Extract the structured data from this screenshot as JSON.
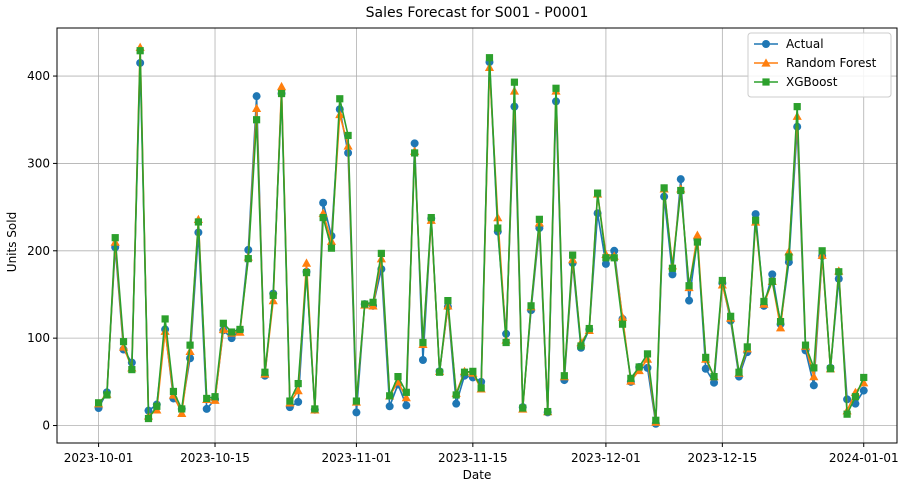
{
  "chart_data": {
    "type": "line",
    "title": "Sales Forecast for S001 - P0001",
    "xlabel": "Date",
    "ylabel": "Units Sold",
    "x_start": "2023-10-01",
    "x_end": "2024-01-01",
    "xlim": [
      "2023-09-26",
      "2024-01-05"
    ],
    "ylim": [
      -20,
      455
    ],
    "grid": true,
    "legend_position": "upper right",
    "x_tick_labels": [
      "2023-10-01",
      "2023-10-15",
      "2023-11-01",
      "2023-11-15",
      "2023-12-01",
      "2023-12-15",
      "2024-01-01"
    ],
    "x_tick_values": [
      "2023-10-01",
      "2023-10-15",
      "2023-11-01",
      "2023-11-15",
      "2023-12-01",
      "2023-12-15",
      "2024-01-01"
    ],
    "y_ticks": [
      0,
      100,
      200,
      300,
      400
    ],
    "series": [
      {
        "name": "Actual",
        "color": "#1f77b4",
        "marker": "circle",
        "values": [
          20,
          38,
          204,
          87,
          72,
          415,
          17,
          24,
          110,
          31,
          19,
          77,
          221,
          19,
          30,
          109,
          100,
          109,
          201,
          377,
          57,
          151,
          380,
          21,
          27,
          176,
          18,
          255,
          217,
          362,
          312,
          15,
          139,
          137,
          179,
          22,
          47,
          23,
          323,
          75,
          237,
          62,
          136,
          25,
          57,
          55,
          50,
          416,
          222,
          105,
          365,
          21,
          132,
          226,
          15,
          371,
          52,
          186,
          89,
          110,
          243,
          185,
          200,
          122,
          50,
          67,
          66,
          2,
          262,
          173,
          282,
          143,
          213,
          65,
          49,
          163,
          120,
          56,
          84,
          242,
          137,
          173,
          116,
          187,
          342,
          86,
          46,
          194,
          66,
          168,
          30,
          25,
          40
        ]
      },
      {
        "name": "Random Forest",
        "color": "#ff7f0e",
        "marker": "triangle",
        "values": [
          25,
          36,
          210,
          90,
          66,
          433,
          11,
          18,
          108,
          35,
          14,
          85,
          236,
          30,
          29,
          110,
          106,
          107,
          193,
          363,
          59,
          143,
          388,
          26,
          40,
          186,
          18,
          243,
          211,
          356,
          320,
          27,
          138,
          137,
          191,
          34,
          50,
          32,
          314,
          93,
          235,
          62,
          137,
          37,
          62,
          60,
          42,
          410,
          238,
          98,
          383,
          19,
          136,
          232,
          16,
          383,
          56,
          190,
          95,
          109,
          265,
          196,
          194,
          124,
          51,
          63,
          76,
          4,
          271,
          183,
          271,
          158,
          218,
          76,
          56,
          161,
          123,
          60,
          88,
          233,
          139,
          165,
          112,
          199,
          354,
          91,
          56,
          195,
          65,
          177,
          17,
          38,
          49
        ]
      },
      {
        "name": "XGBoost",
        "color": "#2ca02c",
        "marker": "square",
        "values": [
          26,
          35,
          215,
          96,
          64,
          429,
          8,
          22,
          122,
          39,
          19,
          92,
          233,
          31,
          33,
          117,
          107,
          110,
          191,
          350,
          61,
          149,
          380,
          28,
          48,
          175,
          19,
          238,
          203,
          374,
          332,
          28,
          139,
          141,
          197,
          34,
          56,
          38,
          312,
          95,
          238,
          61,
          143,
          35,
          61,
          62,
          43,
          421,
          226,
          95,
          393,
          20,
          137,
          236,
          16,
          386,
          57,
          195,
          91,
          111,
          266,
          192,
          192,
          116,
          54,
          67,
          82,
          6,
          272,
          180,
          269,
          160,
          210,
          78,
          56,
          166,
          125,
          61,
          90,
          235,
          142,
          165,
          119,
          193,
          365,
          92,
          66,
          200,
          65,
          176,
          13,
          33,
          55
        ]
      }
    ]
  }
}
